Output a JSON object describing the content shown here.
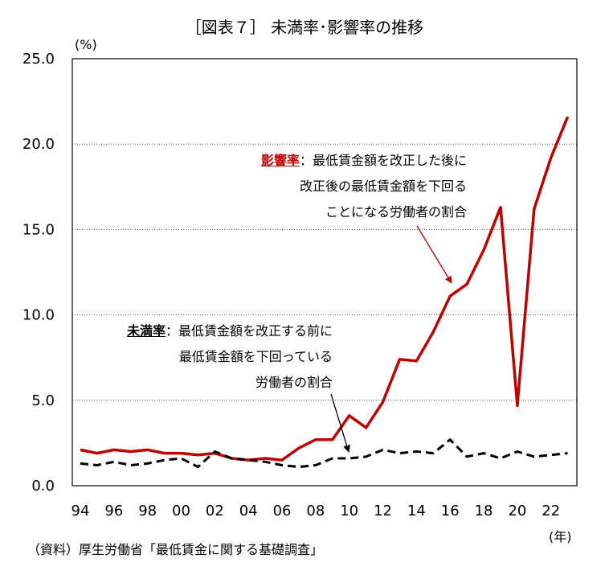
{
  "page": {
    "title": "［図表７］ 未満率･影響率の推移",
    "y_unit": "(%)",
    "x_unit": "(年)",
    "source": "（資料）厚生労働省「最低賃金に関する基礎調査」"
  },
  "annotations": {
    "red": {
      "key": "影響率",
      "sep": "：",
      "line1": "最低賃金額を改正した後に",
      "line2": "改正後の最低賃金額を下回る",
      "line3": "ことになる労働者の割合"
    },
    "black": {
      "key": "未満率",
      "sep": "：",
      "line1": "最低賃金額を改正する前に",
      "line2": "最低賃金額を下回っている",
      "line3": "労働者の割合"
    }
  },
  "chart_data": {
    "type": "line",
    "x": [
      1994,
      1995,
      1996,
      1997,
      1998,
      1999,
      2000,
      2001,
      2002,
      2003,
      2004,
      2005,
      2006,
      2007,
      2008,
      2009,
      2010,
      2011,
      2012,
      2013,
      2014,
      2015,
      2016,
      2017,
      2018,
      2019,
      2020,
      2021,
      2022,
      2023
    ],
    "x_tick_labels": [
      "94",
      "96",
      "98",
      "00",
      "02",
      "04",
      "06",
      "08",
      "10",
      "12",
      "14",
      "16",
      "18",
      "20",
      "22"
    ],
    "y_tick_labels": [
      "0.0",
      "5.0",
      "10.0",
      "15.0",
      "20.0",
      "25.0"
    ],
    "ylim": [
      0,
      25
    ],
    "xlim": [
      1994,
      2023
    ],
    "grid": "horizontal dotted",
    "series": [
      {
        "name": "影響率",
        "color": "#c00000",
        "style": "solid",
        "values": [
          2.1,
          1.9,
          2.1,
          2.0,
          2.1,
          1.9,
          1.9,
          1.8,
          1.9,
          1.6,
          1.5,
          1.6,
          1.5,
          2.2,
          2.7,
          2.7,
          4.1,
          3.4,
          4.9,
          7.4,
          7.3,
          9.0,
          11.1,
          11.8,
          13.8,
          16.3,
          4.7,
          16.2,
          19.2,
          21.6
        ]
      },
      {
        "name": "未満率",
        "color": "#000000",
        "style": "dashed",
        "values": [
          1.3,
          1.2,
          1.4,
          1.2,
          1.3,
          1.5,
          1.6,
          1.1,
          2.0,
          1.6,
          1.5,
          1.4,
          1.2,
          1.1,
          1.2,
          1.6,
          1.6,
          1.7,
          2.1,
          1.9,
          2.0,
          1.9,
          2.7,
          1.7,
          1.9,
          1.6,
          2.0,
          1.7,
          1.8,
          1.9
        ]
      }
    ]
  }
}
